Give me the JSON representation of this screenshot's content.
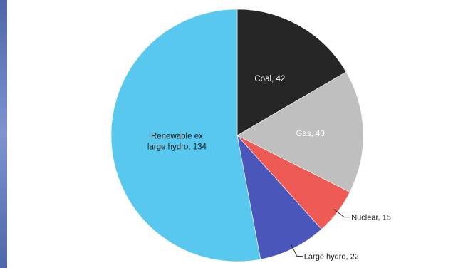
{
  "chart_data": {
    "type": "pie",
    "title": "",
    "slices": [
      {
        "label": "Coal",
        "value": 42,
        "color": "#262626",
        "label_color": "#ffffff",
        "label_text": [
          "Coal, 42"
        ]
      },
      {
        "label": "Gas",
        "value": 40,
        "color": "#bfbfbf",
        "label_color": "#ffffff",
        "label_text": [
          "Gas, 40"
        ]
      },
      {
        "label": "Nuclear",
        "value": 15,
        "color": "#ee5b55",
        "label_color": "#1a1a1a",
        "label_text": [
          "Nuclear, 15"
        ]
      },
      {
        "label": "Large hydro",
        "value": 22,
        "color": "#4a56ba",
        "label_color": "#1a1a1a",
        "label_text": [
          "Large hydro, 22"
        ]
      },
      {
        "label": "Renewable ex large hydro",
        "value": 134,
        "color": "#58c8ee",
        "label_color": "#1a1a1a",
        "label_text": [
          "Renewable ex",
          "large hydro, 134"
        ]
      }
    ],
    "start_angle": "12 o'clock",
    "direction": "clockwise",
    "legend": "none"
  }
}
